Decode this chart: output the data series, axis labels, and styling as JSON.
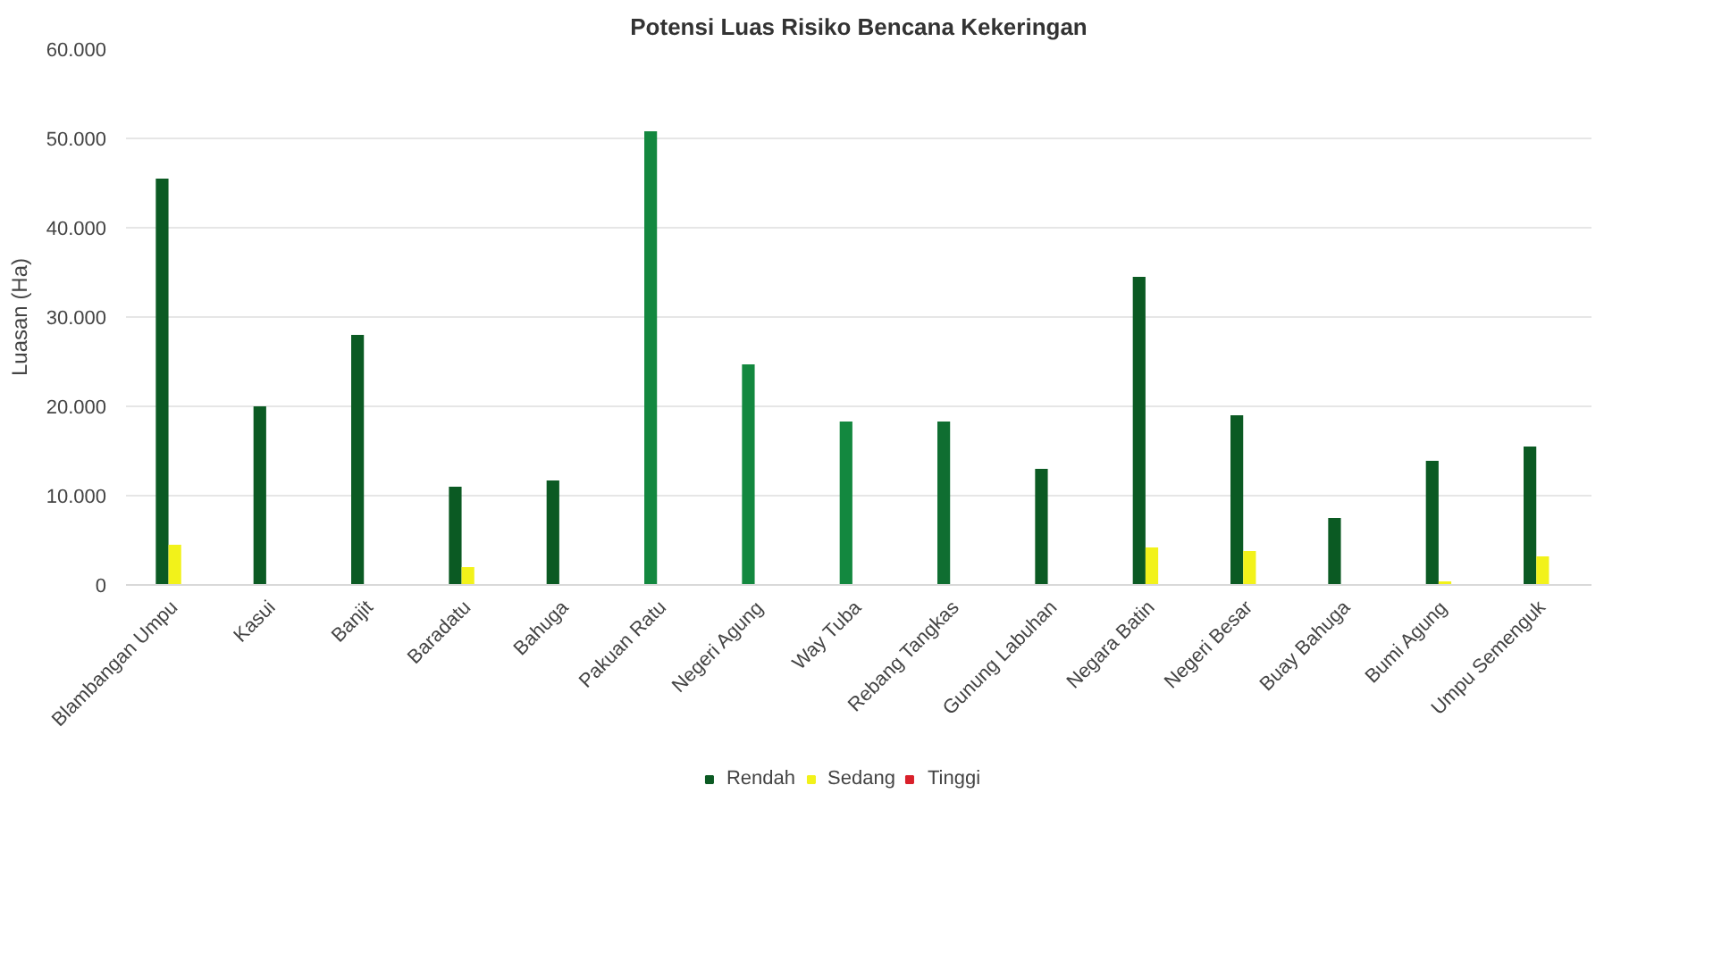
{
  "chart_data": {
    "type": "bar",
    "title": "Potensi Luas Risiko Bencana Kekeringan",
    "ylabel": "Luasan (Ha)",
    "categories": [
      "Blambangan Umpu",
      "Kasui",
      "Banjit",
      "Baradatu",
      "Bahuga",
      "Pakuan Ratu",
      "Negeri Agung",
      "Way Tuba",
      "Rebang Tangkas",
      "Gunung Labuhan",
      "Negara Batin",
      "Negeri Besar",
      "Buay Bahuga",
      "Bumi Agung",
      "Umpu Semenguk"
    ],
    "series": [
      {
        "name": "Rendah",
        "color": "#0b5a23",
        "colors": [
          "#0b5a23",
          "#0b5a23",
          "#0b5a23",
          "#0b5a23",
          "#0b5a23",
          "#13883f",
          "#13883f",
          "#13883f",
          "#0f6e31",
          "#0b5a23",
          "#0b5a23",
          "#0b5a23",
          "#0b5a23",
          "#0b5a23",
          "#0b5a23"
        ],
        "values": [
          45500,
          20000,
          28000,
          11000,
          11700,
          50800,
          24700,
          18300,
          18300,
          13000,
          34500,
          19000,
          7500,
          13900,
          15500
        ]
      },
      {
        "name": "Sedang",
        "color": "#f2f21a",
        "values": [
          4500,
          0,
          0,
          2000,
          0,
          0,
          0,
          0,
          0,
          0,
          4200,
          3800,
          0,
          400,
          3200
        ]
      },
      {
        "name": "Tinggi",
        "color": "#d9202a",
        "values": [
          0,
          0,
          0,
          0,
          0,
          0,
          0,
          0,
          0,
          0,
          0,
          0,
          0,
          0,
          0
        ]
      }
    ],
    "ylim": [
      0,
      60000
    ],
    "yticks": [
      {
        "value": 0,
        "label": "0"
      },
      {
        "value": 10000,
        "label": "10.000"
      },
      {
        "value": 20000,
        "label": "20.000"
      },
      {
        "value": 30000,
        "label": "30.000"
      },
      {
        "value": 40000,
        "label": "40.000"
      },
      {
        "value": 50000,
        "label": "50.000"
      },
      {
        "value": 60000,
        "label": "60.000"
      }
    ],
    "grid": "y",
    "legend": "bottom"
  }
}
